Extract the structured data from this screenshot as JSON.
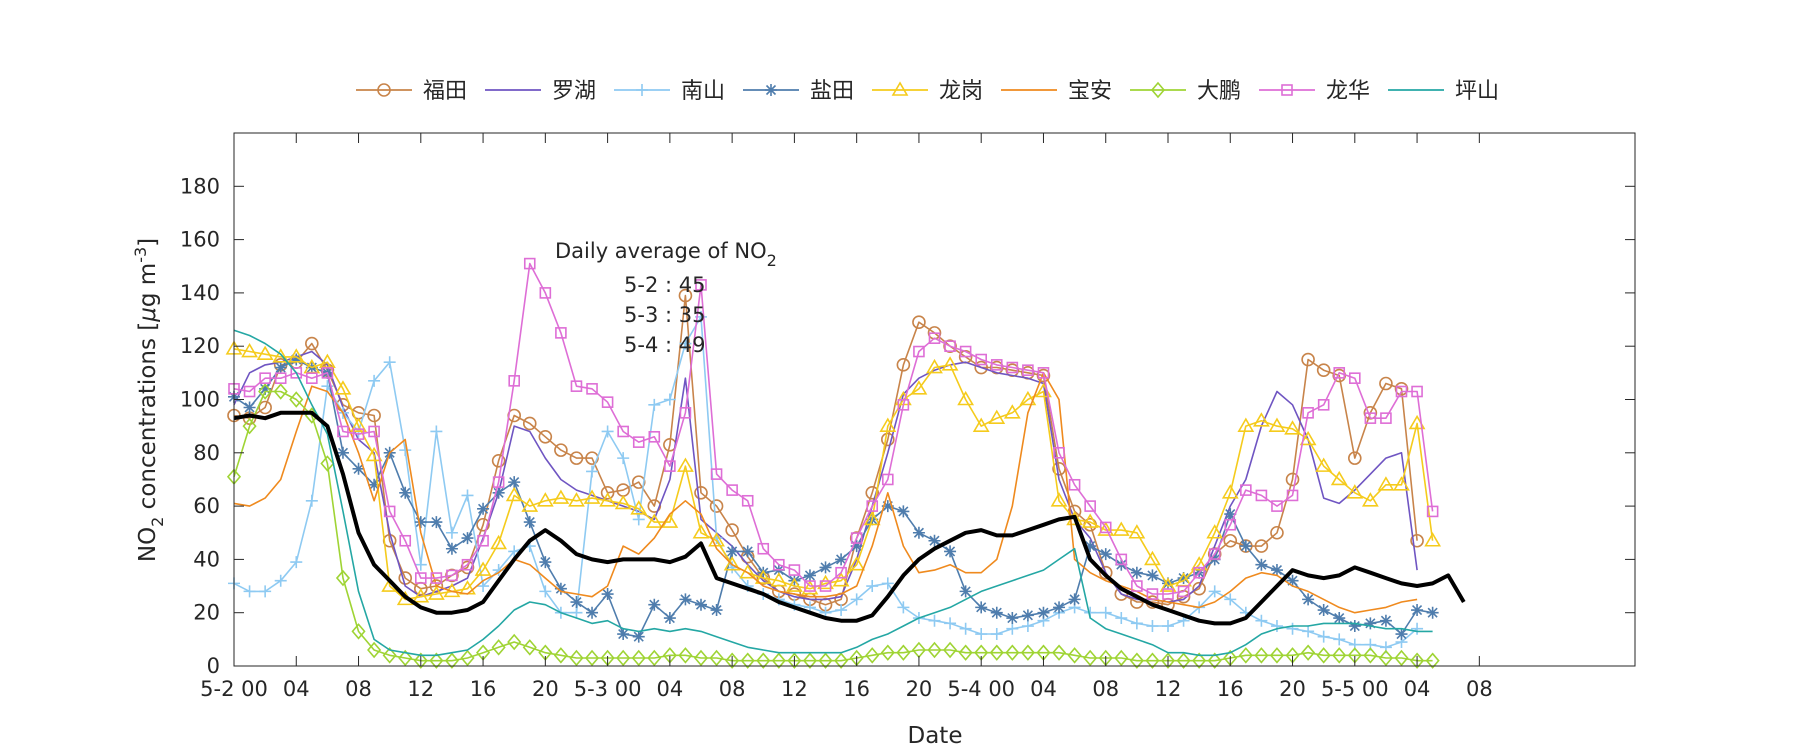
{
  "chart_data": {
    "type": "line",
    "xlabel": "Date",
    "ylabel": "NO",
    "ylabel_sub": "2",
    "ylabel_rest": " concentrations [",
    "ylabel_mu": "μ",
    "ylabel_unit": "g m",
    "ylabel_sup": "-3",
    "ylabel_close": "]",
    "xlim": [
      0,
      90
    ],
    "ylim": [
      0,
      200
    ],
    "grid": false,
    "legend_position": "top",
    "x_ticks": [
      {
        "x": 0,
        "label": "5-2 00"
      },
      {
        "x": 4,
        "label": "04"
      },
      {
        "x": 8,
        "label": "08"
      },
      {
        "x": 12,
        "label": "12"
      },
      {
        "x": 16,
        "label": "16"
      },
      {
        "x": 20,
        "label": "20"
      },
      {
        "x": 24,
        "label": "5-3 00"
      },
      {
        "x": 28,
        "label": "04"
      },
      {
        "x": 32,
        "label": "08"
      },
      {
        "x": 36,
        "label": "12"
      },
      {
        "x": 40,
        "label": "16"
      },
      {
        "x": 44,
        "label": "20"
      },
      {
        "x": 48,
        "label": "5-4 00"
      },
      {
        "x": 52,
        "label": "04"
      },
      {
        "x": 56,
        "label": "08"
      },
      {
        "x": 60,
        "label": "12"
      },
      {
        "x": 64,
        "label": "16"
      },
      {
        "x": 68,
        "label": "20"
      },
      {
        "x": 72,
        "label": "5-5 00"
      },
      {
        "x": 76,
        "label": "04"
      },
      {
        "x": 80,
        "label": "08"
      }
    ],
    "y_ticks": [
      0,
      20,
      40,
      60,
      80,
      100,
      120,
      140,
      160,
      180
    ],
    "annotation": {
      "title": "Daily average of NO",
      "title_sub": "2",
      "lines": [
        "5-2 : 45",
        "5-3 : 35",
        "5-4 : 49"
      ]
    },
    "series": [
      {
        "name": "福田",
        "color": "#c8844a",
        "marker": "circle",
        "values": [
          94,
          93,
          97,
          113,
          114,
          121,
          111,
          98,
          95,
          94,
          47,
          33,
          29,
          30,
          34,
          37,
          53,
          77,
          94,
          91,
          86,
          81,
          78,
          78,
          65,
          66,
          69,
          60,
          83,
          139,
          65,
          60,
          51,
          41,
          33,
          28,
          27,
          25,
          23,
          25,
          48,
          65,
          85,
          113,
          129,
          125,
          120,
          116,
          112,
          112,
          111,
          110,
          109,
          74,
          58,
          53,
          35,
          27,
          24,
          24,
          23,
          26,
          29,
          42,
          47,
          45,
          45,
          50,
          70,
          115,
          111,
          109,
          78,
          95,
          106,
          104,
          47
        ]
      },
      {
        "name": "罗湖",
        "color": "#6f55c2",
        "marker": "none",
        "values": [
          98,
          110,
          113,
          114,
          116,
          118,
          113,
          97,
          85,
          80,
          50,
          30,
          26,
          28,
          30,
          33,
          48,
          65,
          90,
          88,
          78,
          70,
          66,
          64,
          62,
          60,
          58,
          55,
          70,
          108,
          55,
          50,
          45,
          38,
          32,
          28,
          26,
          25,
          25,
          26,
          40,
          60,
          80,
          102,
          108,
          111,
          113,
          114,
          112,
          110,
          109,
          108,
          106,
          70,
          55,
          48,
          35,
          27,
          25,
          25,
          24,
          25,
          30,
          45,
          60,
          70,
          90,
          103,
          98,
          85,
          63,
          61,
          66,
          72,
          78,
          80,
          36
        ]
      },
      {
        "name": "南山",
        "color": "#8ecaf2",
        "marker": "plus",
        "values": [
          31,
          28,
          28,
          32,
          39,
          62,
          105,
          95,
          88,
          107,
          114,
          81,
          38,
          88,
          50,
          64,
          30,
          36,
          43,
          45,
          28,
          20,
          20,
          73,
          88,
          78,
          55,
          98,
          100,
          121,
          131,
          48,
          37,
          30,
          27,
          25,
          23,
          22,
          20,
          21,
          25,
          30,
          31,
          22,
          18,
          17,
          16,
          14,
          12,
          12,
          14,
          15,
          17,
          20,
          22,
          20,
          20,
          18,
          16,
          15,
          15,
          17,
          22,
          28,
          25,
          20,
          17,
          15,
          14,
          13,
          11,
          10,
          8,
          8,
          7,
          9,
          14
        ]
      },
      {
        "name": "盐田",
        "color": "#4f7dad",
        "marker": "star",
        "values": [
          101,
          97,
          104,
          112,
          115,
          112,
          110,
          80,
          74,
          68,
          80,
          65,
          54,
          54,
          44,
          48,
          59,
          65,
          69,
          54,
          39,
          29,
          24,
          20,
          27,
          12,
          11,
          23,
          18,
          25,
          23,
          21,
          43,
          43,
          35,
          36,
          32,
          34,
          37,
          40,
          45,
          55,
          60,
          58,
          50,
          47,
          43,
          28,
          22,
          20,
          18,
          19,
          20,
          22,
          25,
          45,
          42,
          38,
          35,
          34,
          31,
          33,
          35,
          40,
          57,
          45,
          38,
          36,
          32,
          25,
          21,
          18,
          15,
          16,
          17,
          12,
          21,
          20
        ]
      },
      {
        "name": "龙岗",
        "color": "#f5cb1c",
        "marker": "triangle",
        "values": [
          119,
          118,
          117,
          116,
          116,
          112,
          114,
          104,
          90,
          79,
          30,
          25,
          26,
          27,
          28,
          29,
          36,
          46,
          64,
          60,
          62,
          63,
          62,
          63,
          62,
          61,
          59,
          54,
          54,
          75,
          50,
          47,
          38,
          35,
          33,
          32,
          30,
          29,
          31,
          32,
          38,
          55,
          90,
          100,
          104,
          112,
          113,
          100,
          90,
          93,
          95,
          100,
          103,
          62,
          55,
          54,
          51,
          51,
          50,
          40,
          30,
          32,
          38,
          50,
          65,
          90,
          92,
          90,
          89,
          85,
          75,
          70,
          65,
          62,
          68,
          68,
          91,
          47
        ]
      },
      {
        "name": "宝安",
        "color": "#ef8a1e",
        "marker": "none",
        "values": [
          61,
          60,
          63,
          70,
          88,
          105,
          103,
          95,
          80,
          62,
          80,
          85,
          50,
          30,
          28,
          27,
          32,
          35,
          40,
          38,
          33,
          28,
          27,
          26,
          30,
          45,
          42,
          48,
          57,
          62,
          57,
          44,
          38,
          35,
          30,
          28,
          27,
          26,
          26,
          27,
          30,
          45,
          65,
          45,
          35,
          36,
          38,
          35,
          35,
          40,
          60,
          95,
          110,
          100,
          40,
          35,
          32,
          30,
          28,
          25,
          24,
          23,
          22,
          24,
          28,
          33,
          35,
          34,
          30,
          28,
          25,
          22,
          20,
          21,
          22,
          24,
          25
        ]
      },
      {
        "name": "大鹏",
        "color": "#9fd434",
        "marker": "diamond",
        "values": [
          71,
          90,
          103,
          103,
          100,
          94,
          76,
          33,
          13,
          6,
          4,
          3,
          2,
          2,
          2,
          3,
          5,
          7,
          9,
          7,
          5,
          4,
          3,
          3,
          3,
          3,
          3,
          3,
          4,
          4,
          3,
          3,
          2,
          2,
          2,
          2,
          2,
          2,
          2,
          2,
          3,
          4,
          5,
          5,
          6,
          6,
          6,
          5,
          5,
          5,
          5,
          5,
          5,
          5,
          4,
          3,
          3,
          3,
          2,
          2,
          2,
          2,
          2,
          2,
          3,
          4,
          4,
          4,
          4,
          5,
          4,
          4,
          4,
          4,
          3,
          3,
          2,
          2
        ]
      },
      {
        "name": "龙华",
        "color": "#de6ed6",
        "marker": "square",
        "values": [
          104,
          103,
          108,
          108,
          110,
          108,
          110,
          88,
          87,
          88,
          58,
          47,
          33,
          33,
          34,
          38,
          47,
          69,
          107,
          151,
          140,
          125,
          105,
          104,
          99,
          88,
          84,
          86,
          75,
          95,
          143,
          72,
          66,
          62,
          44,
          38,
          36,
          30,
          30,
          35,
          48,
          60,
          70,
          98,
          118,
          123,
          120,
          118,
          115,
          113,
          112,
          111,
          110,
          80,
          68,
          60,
          52,
          40,
          30,
          27,
          27,
          28,
          35,
          42,
          53,
          66,
          64,
          60,
          64,
          95,
          98,
          110,
          108,
          93,
          93,
          103,
          103,
          58
        ]
      },
      {
        "name": "坪山",
        "color": "#24a7a4",
        "marker": "none",
        "values": [
          126,
          124,
          121,
          117,
          110,
          98,
          87,
          58,
          28,
          10,
          6,
          5,
          4,
          4,
          5,
          6,
          10,
          15,
          21,
          24,
          23,
          20,
          18,
          16,
          17,
          14,
          13,
          14,
          13,
          14,
          13,
          11,
          9,
          7,
          6,
          5,
          5,
          5,
          5,
          5,
          7,
          10,
          12,
          15,
          18,
          20,
          22,
          25,
          28,
          30,
          32,
          34,
          36,
          40,
          44,
          18,
          14,
          12,
          10,
          8,
          5,
          5,
          4,
          4,
          5,
          8,
          12,
          14,
          15,
          15,
          16,
          16,
          16,
          15,
          14,
          14,
          13,
          13
        ]
      },
      {
        "name": "",
        "color": "#000000",
        "marker": "none",
        "width": 4,
        "values": [
          93,
          94,
          93,
          95,
          95,
          95,
          90,
          72,
          50,
          38,
          32,
          26,
          22,
          20,
          20,
          21,
          24,
          32,
          40,
          47,
          51,
          47,
          42,
          40,
          39,
          40,
          40,
          40,
          39,
          41,
          46,
          33,
          31,
          29,
          27,
          24,
          22,
          20,
          18,
          17,
          17,
          19,
          26,
          34,
          40,
          44,
          47,
          50,
          51,
          49,
          49,
          51,
          53,
          55,
          56,
          40,
          34,
          29,
          26,
          23,
          21,
          19,
          17,
          16,
          16,
          18,
          24,
          30,
          36,
          34,
          33,
          34,
          37,
          35,
          33,
          31,
          30,
          31,
          34,
          24
        ]
      }
    ]
  }
}
